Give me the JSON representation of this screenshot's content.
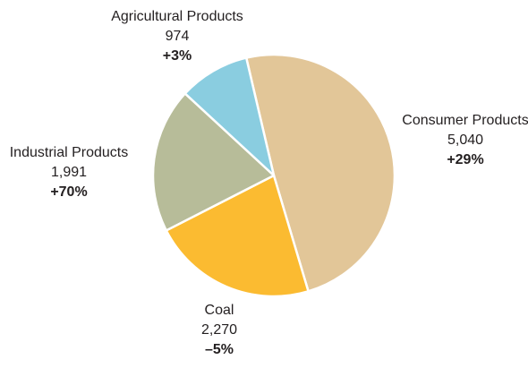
{
  "chart_data": {
    "type": "pie",
    "slices": [
      {
        "label": "Consumer Products",
        "value": 5040,
        "value_text": "5,040",
        "change": "+29%",
        "color": "#e2c698"
      },
      {
        "label": "Coal",
        "value": 2270,
        "value_text": "2,270",
        "change": "–5%",
        "color": "#fbbb31"
      },
      {
        "label": "Industrial Products",
        "value": 1991,
        "value_text": "1,991",
        "change": "+70%",
        "color": "#b7bc99"
      },
      {
        "label": "Agricultural Products",
        "value": 974,
        "value_text": "974",
        "change": "+3%",
        "color": "#8acde0"
      }
    ]
  }
}
